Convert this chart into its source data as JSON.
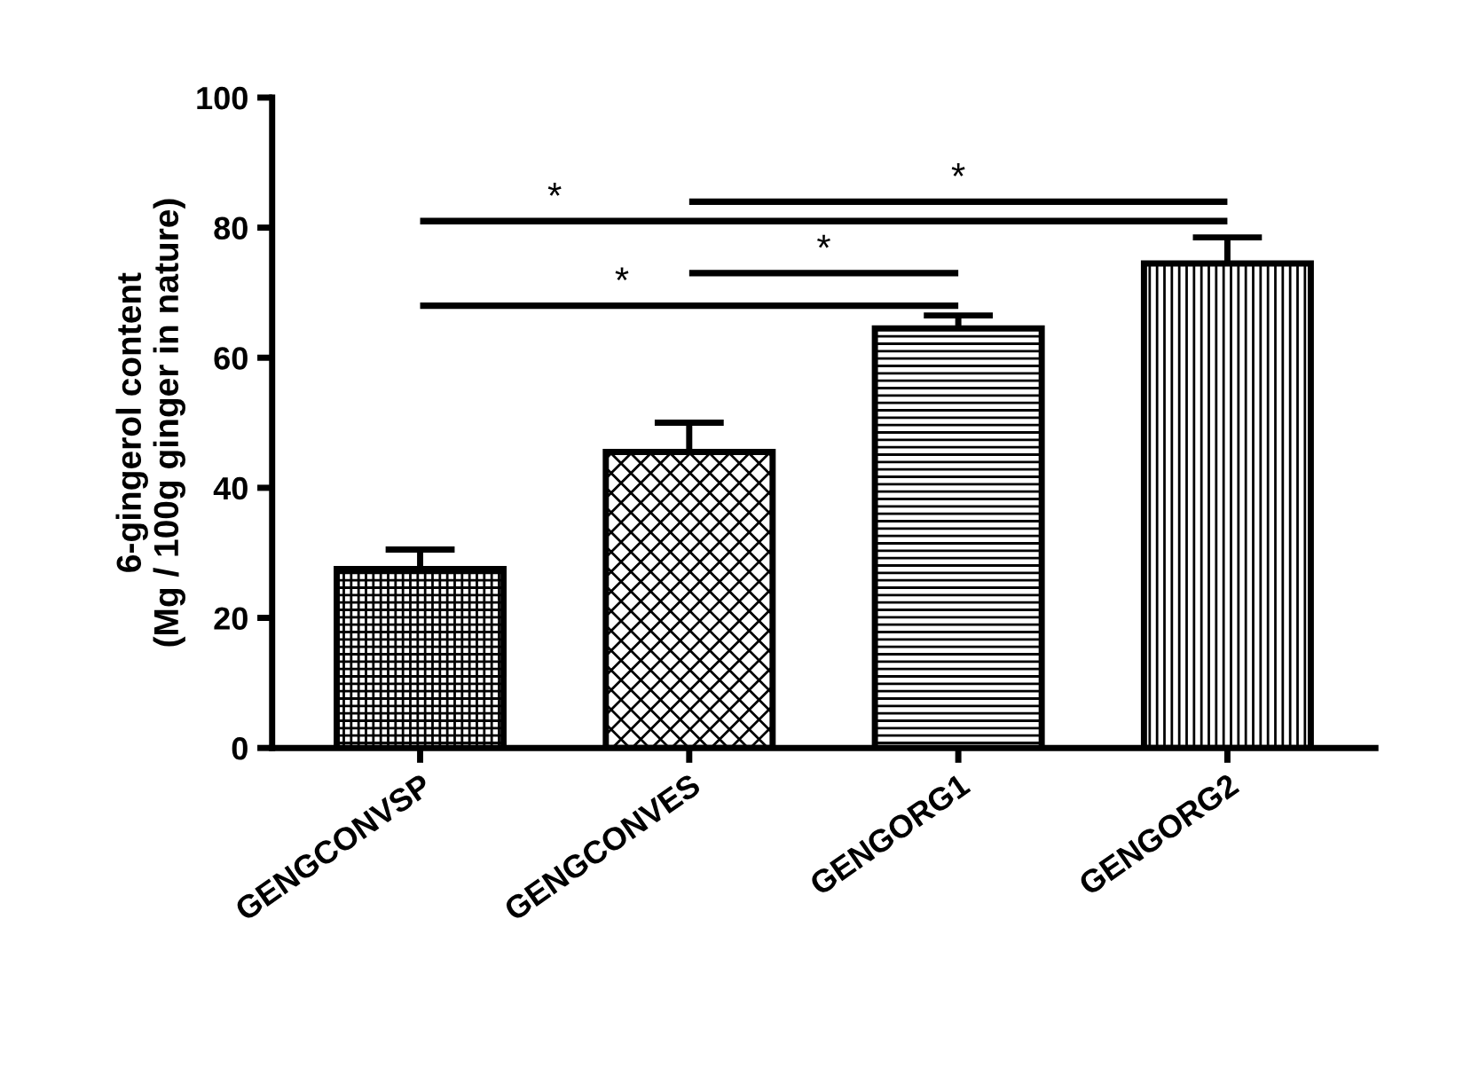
{
  "chart_data": {
    "type": "bar",
    "ylabel": "6-gingerol content\n(Mg / 100g ginger in nature)",
    "categories": [
      "GENGCONVSP",
      "GENGCONVES",
      "GENGORG1",
      "GENGORG2"
    ],
    "values": [
      27.5,
      45.5,
      64.5,
      74.5
    ],
    "errors": [
      3,
      4.5,
      2,
      4
    ],
    "color": "#000000",
    "ylim": [
      0,
      100
    ],
    "yticks": [
      0,
      20,
      40,
      60,
      80,
      100
    ],
    "annotations": [
      "*",
      "*",
      "*",
      "*"
    ]
  }
}
